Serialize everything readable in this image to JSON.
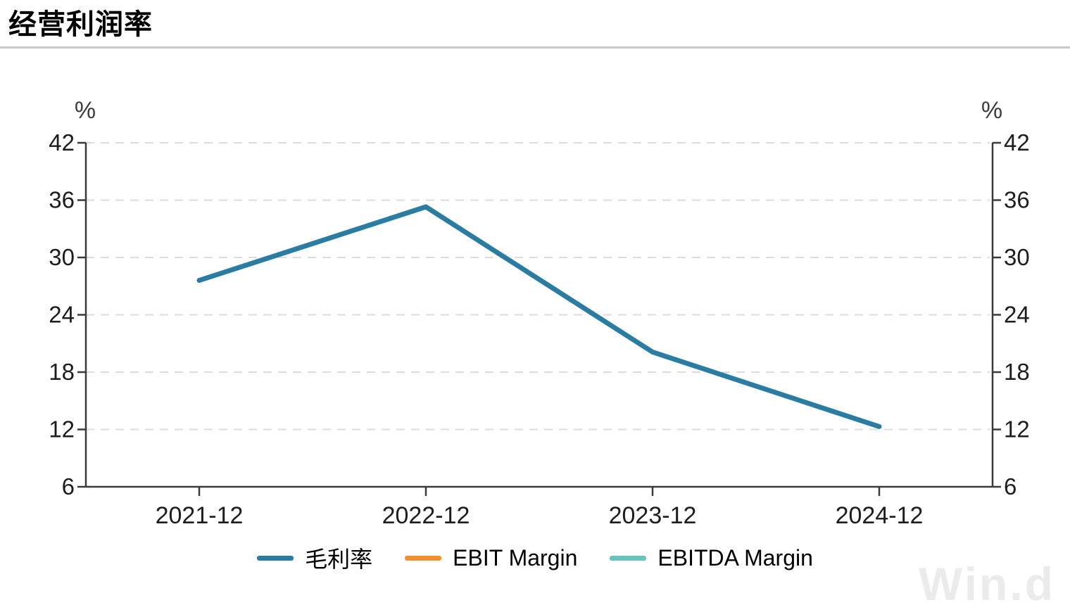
{
  "page": {
    "title": "经营利润率",
    "watermark": "Win.d"
  },
  "chart_data": {
    "type": "line",
    "title": "经营利润率",
    "x": [
      "2021-12",
      "2022-12",
      "2023-12",
      "2024-12"
    ],
    "series": [
      {
        "name": "毛利率",
        "color": "#2b7ca3",
        "values": [
          27.6,
          35.3,
          20.1,
          12.3
        ]
      },
      {
        "name": "EBIT Margin",
        "color": "#f18f2f",
        "values": []
      },
      {
        "name": "EBITDA Margin",
        "color": "#68c3bd",
        "values": []
      }
    ],
    "y_axis": {
      "label": "%",
      "min": 6,
      "max": 42,
      "step": 6,
      "right_mirror": true
    },
    "xlabel": "",
    "ylabel": "%",
    "ylim": [
      6,
      42
    ],
    "grid": "horizontal-dashed",
    "legend_position": "bottom-center",
    "colors": {
      "axis": "#3a3a3a",
      "tick_label": "#1d1d1d",
      "gridline": "#dcdcdc",
      "percent_label": "#3c3c3c"
    }
  }
}
